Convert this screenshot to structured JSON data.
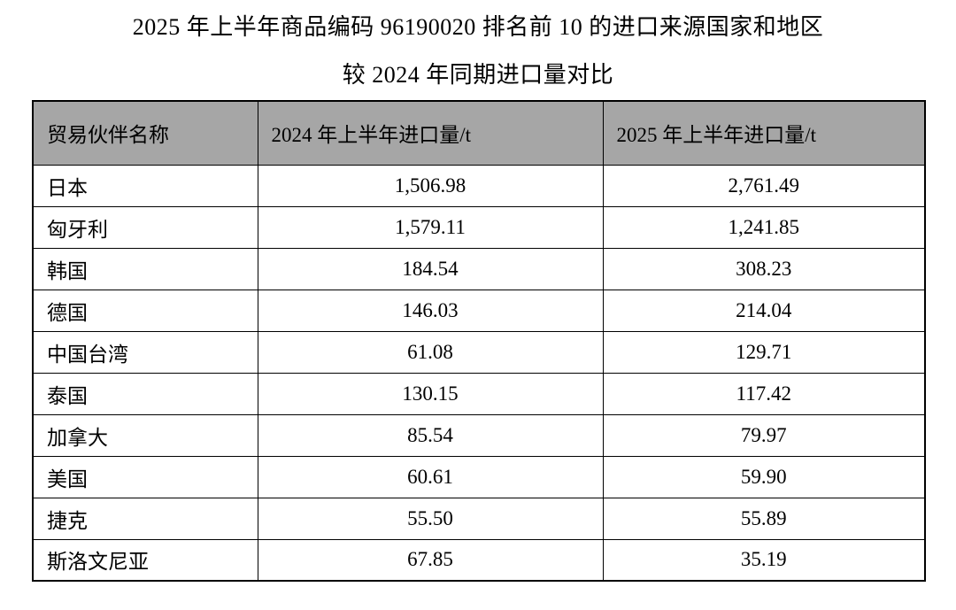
{
  "title": {
    "line1": "2025 年上半年商品编码 96190020 排名前 10 的进口来源国家和地区",
    "line2": "较 2024 年同期进口量对比"
  },
  "table": {
    "header_bg_color": "#a6a6a6",
    "border_color": "#000000",
    "headers": {
      "partner": "贸易伙伴名称",
      "y2024": "2024 年上半年进口量/t",
      "y2025": "2025 年上半年进口量/t"
    },
    "rows": [
      {
        "partner": "日本",
        "y2024": "1,506.98",
        "y2025": "2,761.49"
      },
      {
        "partner": "匈牙利",
        "y2024": "1,579.11",
        "y2025": "1,241.85"
      },
      {
        "partner": "韩国",
        "y2024": "184.54",
        "y2025": "308.23"
      },
      {
        "partner": "德国",
        "y2024": "146.03",
        "y2025": "214.04"
      },
      {
        "partner": "中国台湾",
        "y2024": "61.08",
        "y2025": "129.71"
      },
      {
        "partner": "泰国",
        "y2024": "130.15",
        "y2025": "117.42"
      },
      {
        "partner": "加拿大",
        "y2024": "85.54",
        "y2025": "79.97"
      },
      {
        "partner": "美国",
        "y2024": "60.61",
        "y2025": "59.90"
      },
      {
        "partner": "捷克",
        "y2024": "55.50",
        "y2025": "55.89"
      },
      {
        "partner": "斯洛文尼亚",
        "y2024": "67.85",
        "y2025": "35.19"
      }
    ]
  }
}
